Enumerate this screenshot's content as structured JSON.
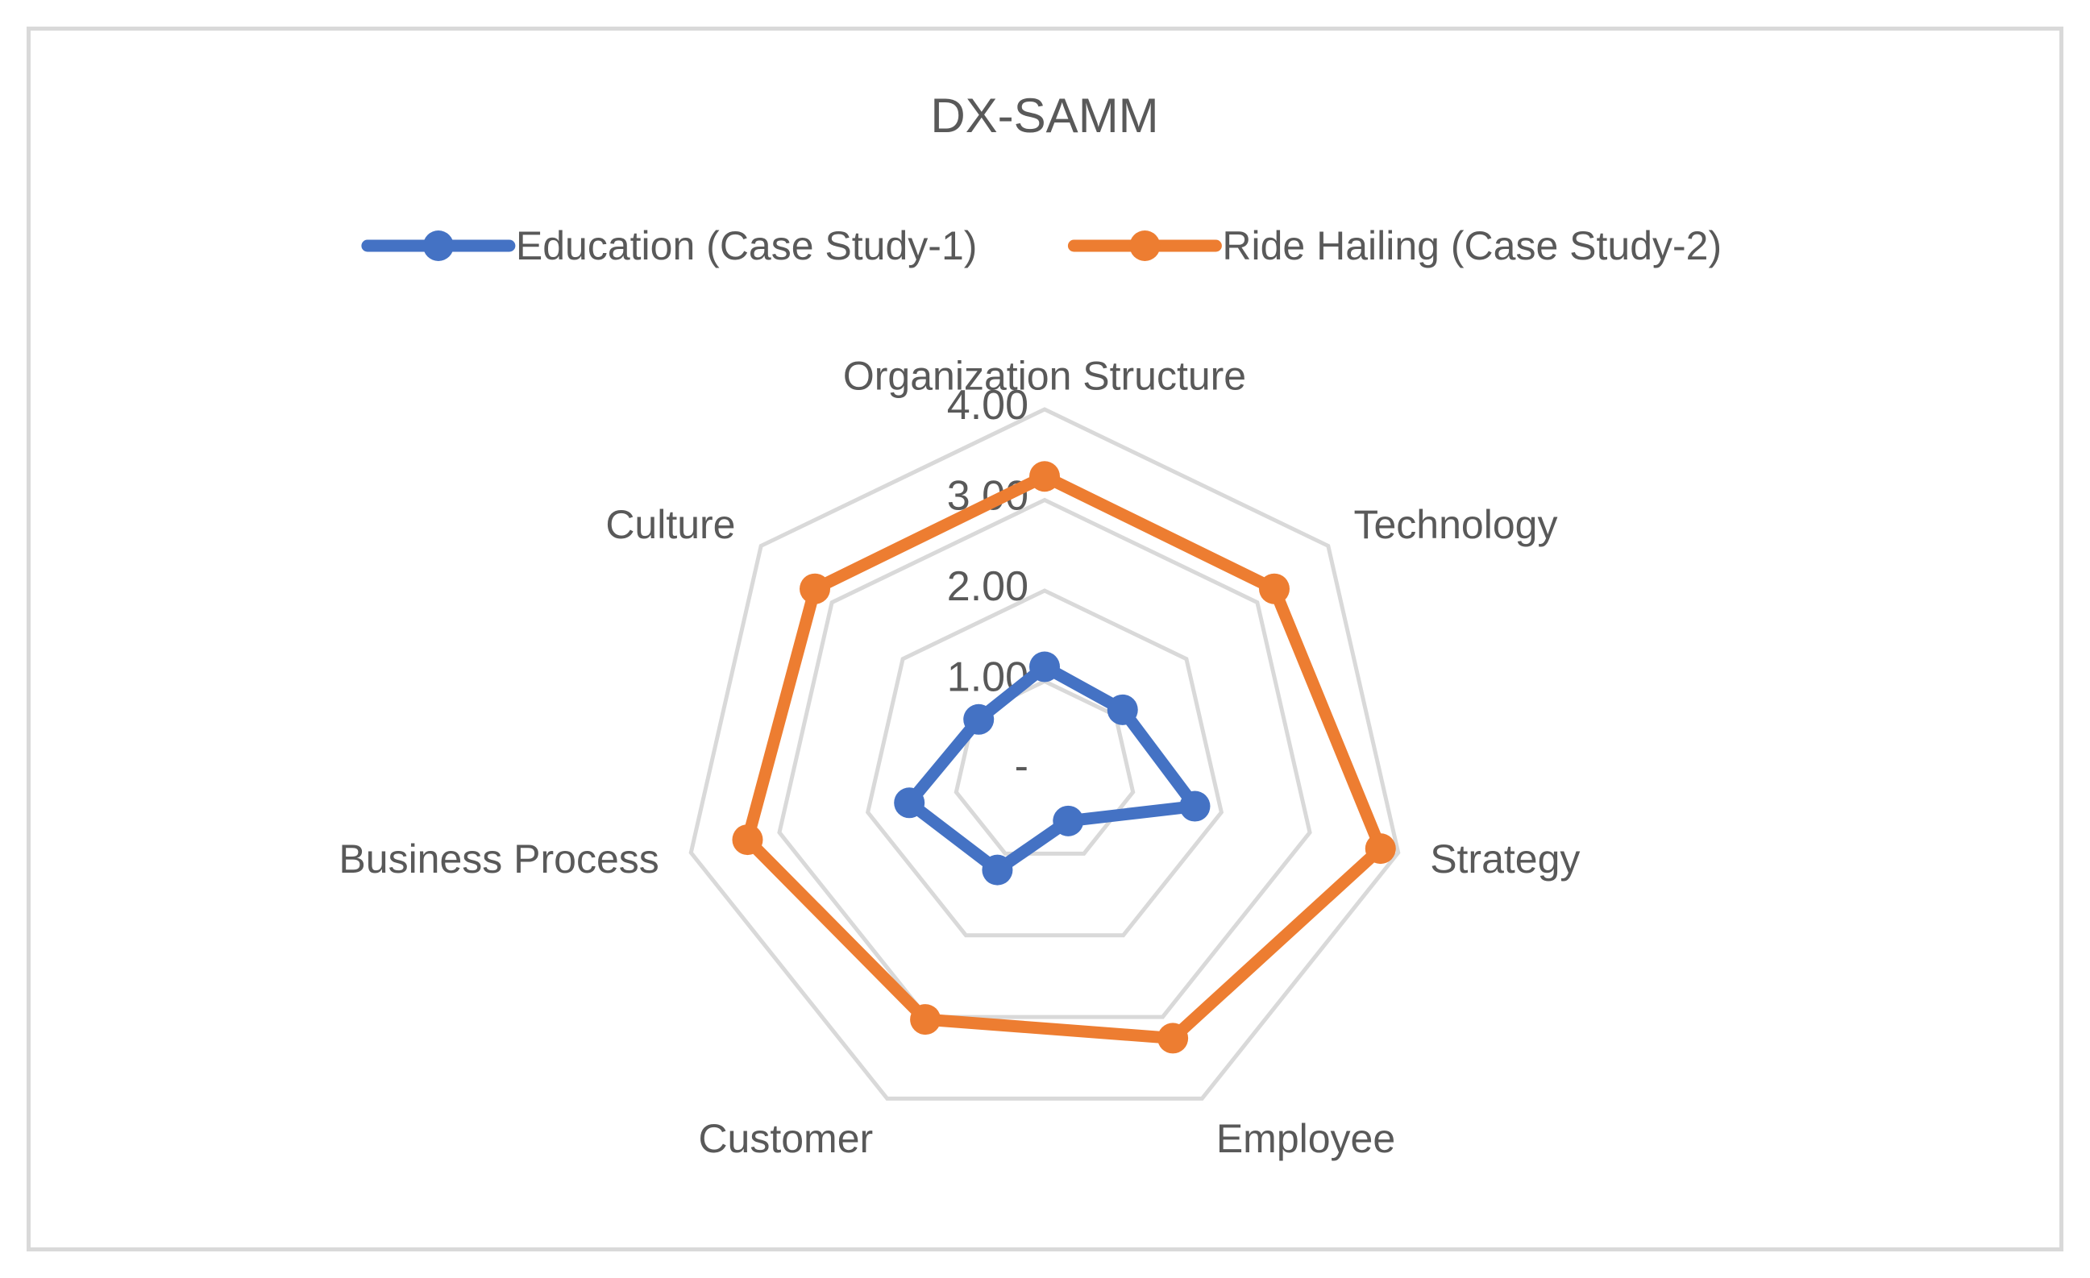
{
  "chart_data": {
    "type": "radar",
    "title": "DX-SAMM",
    "categories": [
      "Organization Structure",
      "Technology",
      "Strategy",
      "Employee",
      "Customer",
      "Business Process",
      "Culture"
    ],
    "rlim": [
      0,
      4
    ],
    "ticks": [
      {
        "value": 0,
        "label": "-"
      },
      {
        "value": 1,
        "label": "1.00"
      },
      {
        "value": 2,
        "label": "2.00"
      },
      {
        "value": 3,
        "label": "3.00"
      },
      {
        "value": 4,
        "label": "4.00"
      }
    ],
    "legend_position": "top",
    "series": [
      {
        "name": "Education (Case Study-1)",
        "color": "#4472c4",
        "values": [
          1.16,
          1.1,
          1.7,
          0.6,
          1.2,
          1.53,
          0.93
        ]
      },
      {
        "name": "Ride Hailing (Case Study-2)",
        "color": "#ed7d31",
        "values": [
          3.26,
          3.24,
          3.8,
          3.26,
          3.03,
          3.36,
          3.24
        ]
      }
    ],
    "grid_color": "#d9d9d9"
  }
}
